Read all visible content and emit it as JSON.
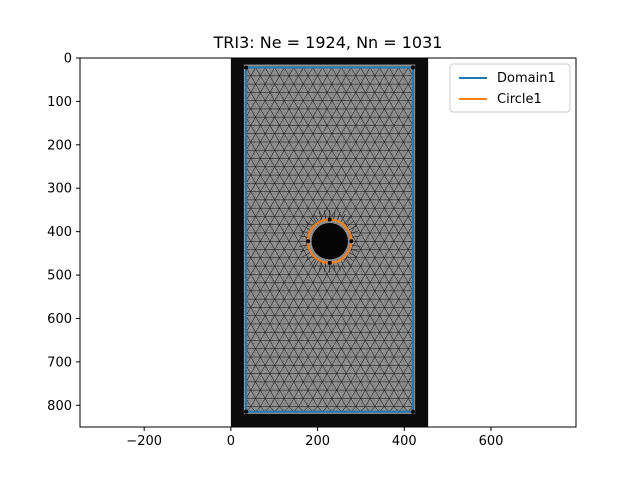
{
  "chart_data": {
    "type": "image_with_mesh_overlay",
    "title": "TRI3: Ne = 1924, Nn = 1031",
    "xlabel": "",
    "ylabel": "",
    "xlim": [
      -348,
      796
    ],
    "ylim": [
      850,
      0
    ],
    "y_inverted": true,
    "x_ticks": [
      -200,
      0,
      200,
      400,
      600
    ],
    "x_tick_labels": [
      "−200",
      "0",
      "200",
      "400",
      "600"
    ],
    "y_ticks": [
      0,
      100,
      200,
      300,
      400,
      500,
      600,
      700,
      800
    ],
    "y_tick_labels": [
      "0",
      "100",
      "200",
      "300",
      "400",
      "500",
      "600",
      "700",
      "800"
    ],
    "grid": false,
    "legend_position": "top-right",
    "image_extent": {
      "x": [
        0,
        455
      ],
      "y": [
        0,
        850
      ]
    },
    "specimen_bright_region": {
      "x": [
        30,
        425
      ],
      "y": [
        15,
        820
      ]
    },
    "mesh": {
      "element_type": "TRI3",
      "num_elements": 1924,
      "num_nodes": 1031,
      "approx_edge_length": 22,
      "color": "#000000"
    },
    "series": [
      {
        "name": "Domain1",
        "kind": "rectangle",
        "color": "#1f77b4",
        "corners": [
          [
            35,
            22
          ],
          [
            420,
            22
          ],
          [
            420,
            815
          ],
          [
            35,
            815
          ]
        ]
      },
      {
        "name": "Circle1",
        "kind": "circle",
        "color": "#ff7f0e",
        "center": [
          228,
          422
        ],
        "radius": 50,
        "hole_radius": 42
      }
    ]
  },
  "colors": {
    "domain": "#1f77b4",
    "circle": "#ff7f0e",
    "mesh": "#000000",
    "background_dark": "#0b0b0b",
    "specimen_gray": "#8a8a8a"
  }
}
